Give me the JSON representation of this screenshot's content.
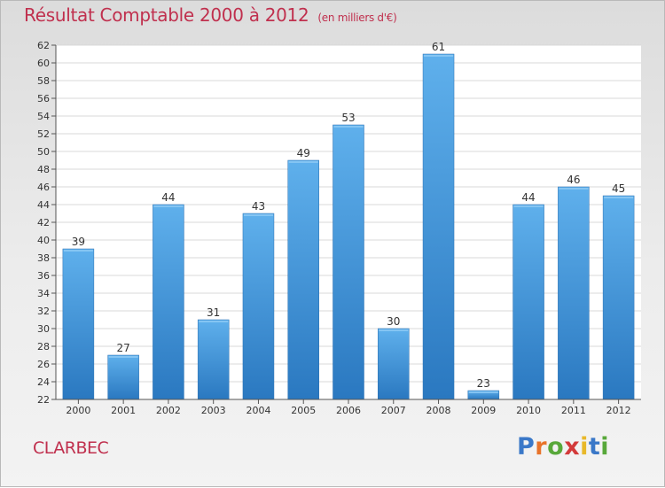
{
  "chart_data": {
    "type": "bar",
    "title": "Résultat Comptable 2000 à 2012",
    "subtitle": "(en milliers d'€)",
    "categories": [
      "2000",
      "2001",
      "2002",
      "2003",
      "2004",
      "2005",
      "2006",
      "2007",
      "2008",
      "2009",
      "2010",
      "2011",
      "2012"
    ],
    "values": [
      39,
      27,
      44,
      31,
      43,
      49,
      53,
      30,
      61,
      23,
      44,
      46,
      45
    ],
    "xlabel": "",
    "ylabel": "",
    "ylim": [
      22,
      62
    ],
    "ytick_step": 2,
    "grid": true,
    "bar_color": "#3d8fd6"
  },
  "place_name": "CLARBEC",
  "logo": {
    "letters": [
      "P",
      "r",
      "o",
      "x",
      "i",
      "t",
      "i"
    ],
    "colors": [
      "#3a78c8",
      "#e8732a",
      "#58a83a",
      "#d33a3a",
      "#e8b82a",
      "#3a78c8",
      "#58a83a"
    ]
  }
}
